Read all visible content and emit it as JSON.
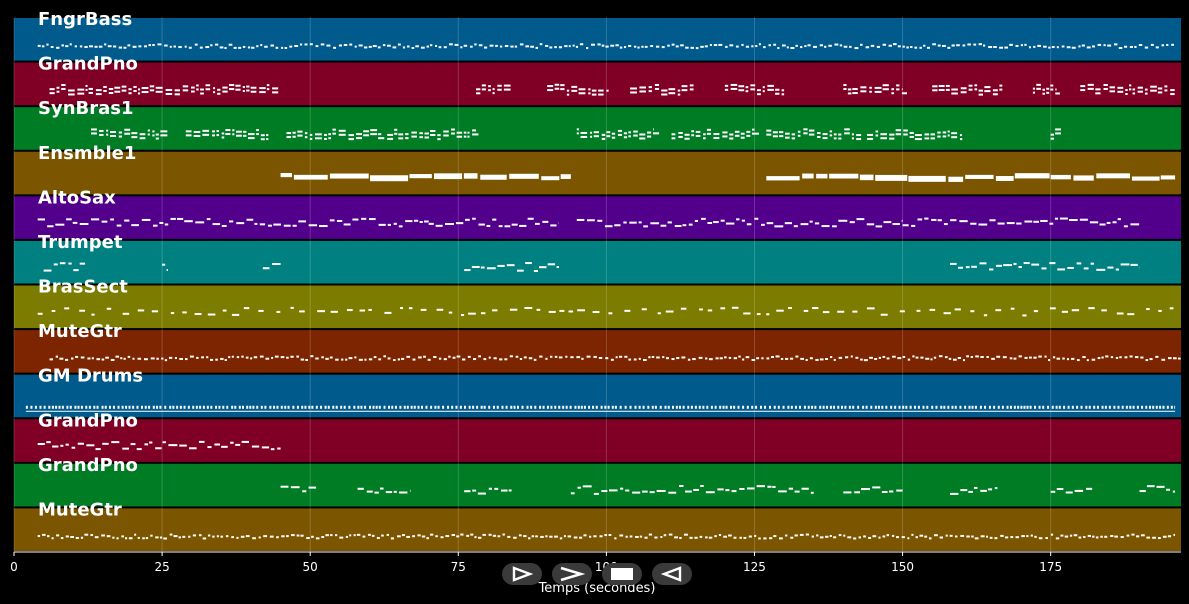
{
  "chart_data": {
    "type": "piano-roll",
    "xlabel": "Temps (secondes)",
    "xlim": [
      0,
      197
    ],
    "xticks": [
      0,
      25,
      50,
      75,
      100,
      125,
      150,
      175
    ],
    "tick_labels": [
      "0",
      "25",
      "50",
      "75",
      "100",
      "125",
      "150",
      "175"
    ],
    "grid": true,
    "tracks": [
      {
        "name": "FngrBass",
        "color": "#005a8c",
        "segments": [
          [
            4,
            196
          ]
        ],
        "style": "dense"
      },
      {
        "name": "GrandPno",
        "color": "#800025",
        "segments": [
          [
            6,
            45
          ],
          [
            78,
            84
          ],
          [
            90,
            100
          ],
          [
            104,
            115
          ],
          [
            120,
            130
          ],
          [
            140,
            150
          ],
          [
            155,
            167
          ],
          [
            172,
            176
          ],
          [
            180,
            196
          ]
        ],
        "style": "chords"
      },
      {
        "name": "SynBras1",
        "color": "#007c24",
        "segments": [
          [
            13,
            26
          ],
          [
            29,
            43
          ],
          [
            46,
            62
          ],
          [
            63,
            78
          ],
          [
            95,
            108
          ],
          [
            111,
            125
          ],
          [
            127,
            143
          ],
          [
            144,
            160
          ],
          [
            175,
            177
          ]
        ],
        "style": "chords"
      },
      {
        "name": "Ensmble1",
        "color": "#7c5500",
        "segments": [
          [
            45,
            94
          ],
          [
            127,
            196
          ]
        ],
        "style": "sustain"
      },
      {
        "name": "AltoSax",
        "color": "#52008c",
        "segments": [
          [
            4,
            70
          ],
          [
            70,
            92
          ],
          [
            95,
            150
          ],
          [
            150,
            190
          ]
        ],
        "style": "melody"
      },
      {
        "name": "Trumpet",
        "color": "#008080",
        "segments": [
          [
            5,
            12
          ],
          [
            25,
            26
          ],
          [
            42,
            45
          ],
          [
            76,
            92
          ],
          [
            158,
            190
          ]
        ],
        "style": "melody"
      },
      {
        "name": "BrasSect",
        "color": "#7c7c00",
        "segments": [
          [
            4,
            196
          ]
        ],
        "style": "stabs"
      },
      {
        "name": "MuteGtr",
        "color": "#7c2500",
        "segments": [
          [
            6,
            197
          ]
        ],
        "style": "dense"
      },
      {
        "name": "GM Drums",
        "color": "#005a8c",
        "segments": [
          [
            2,
            196
          ]
        ],
        "style": "drums"
      },
      {
        "name": "GrandPno",
        "color": "#800025",
        "segments": [
          [
            4,
            45
          ]
        ],
        "style": "melody"
      },
      {
        "name": "GrandPno",
        "color": "#007c24",
        "segments": [
          [
            45,
            51
          ],
          [
            58,
            67
          ],
          [
            76,
            84
          ],
          [
            94,
            128
          ],
          [
            128,
            135
          ],
          [
            140,
            150
          ],
          [
            158,
            166
          ],
          [
            175,
            182
          ],
          [
            190,
            196
          ]
        ],
        "style": "melody"
      },
      {
        "name": "MuteGtr",
        "color": "#7c5500",
        "segments": [
          [
            4,
            196
          ]
        ],
        "style": "dense"
      }
    ]
  },
  "transport": {
    "play_icon": "play-outline-icon",
    "next_icon": "chevron-right-icon",
    "stop_icon": "stop-icon",
    "prev_icon": "play-back-icon"
  }
}
